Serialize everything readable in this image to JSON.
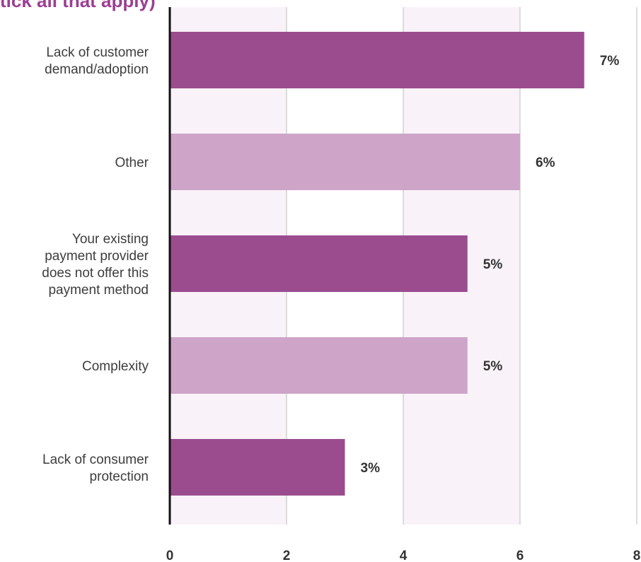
{
  "header": {
    "title_fragment": "tick all that apply)"
  },
  "colors": {
    "bar_dark": "#9b4c8f",
    "bar_light": "#cea4c8",
    "band_shade": "#f9f2f8",
    "grid": "#bdbdbd",
    "axis": "#111111"
  },
  "chart_data": {
    "type": "bar",
    "orientation": "horizontal",
    "categories": [
      [
        "Lack of customer",
        "demand/adoption"
      ],
      [
        "Other"
      ],
      [
        "Your existing",
        "payment provider",
        "does not offer this",
        "payment method"
      ],
      [
        "Complexity"
      ],
      [
        "Lack of consumer",
        "protection"
      ]
    ],
    "values": [
      7.1,
      6.0,
      5.1,
      5.1,
      3.0
    ],
    "value_labels": [
      "7%",
      "6%",
      "5%",
      "5%",
      "3%"
    ],
    "bar_colors": [
      "dark",
      "light",
      "dark",
      "light",
      "dark"
    ],
    "xlim": [
      0,
      8
    ],
    "xticks": [
      0,
      2,
      4,
      6,
      8
    ],
    "xtick_labels": [
      "0",
      "2",
      "4",
      "6",
      "8"
    ],
    "grid": true,
    "legend": "none"
  }
}
